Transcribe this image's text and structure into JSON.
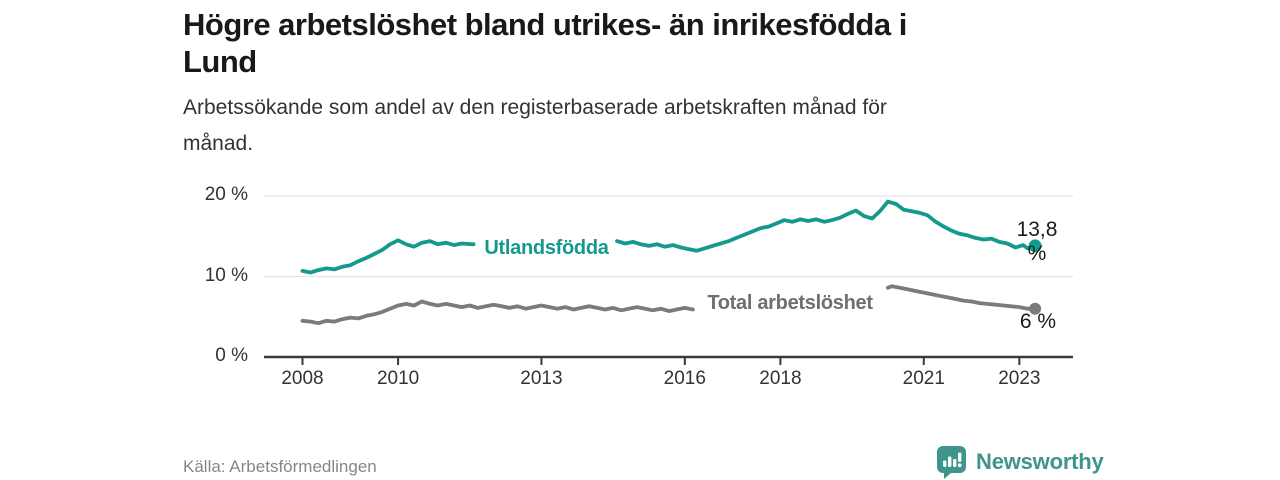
{
  "header": {
    "title_lines": [
      "Högre arbetslöshet bland utrikes- än inrikesfödda i",
      "Lund"
    ],
    "subtitle_lines": [
      "Arbetssökande som andel av den registerbaserade arbetskraften månad för",
      "månad."
    ]
  },
  "footer": {
    "source": "Källa: Arbetsförmedlingen",
    "brand": "Newsworthy",
    "brand_icon": "bar-chart-speech-bubble-icon"
  },
  "colors": {
    "foreign_line": "#149a8c",
    "total_line": "#7b7b7b",
    "grid": "#e3e3e3",
    "axis": "#3b3b3b",
    "tick_text": "#333333",
    "brand": "#3f948b",
    "value_text": "#1a1a1a"
  },
  "chart_data": {
    "type": "line",
    "title": "Högre arbetslöshet bland utrikes- än inrikesfödda i Lund",
    "subtitle": "Arbetssökande som andel av den registerbaserade arbetskraften månad för månad.",
    "unit": "%",
    "grid": "horizontal",
    "labels_inline": true,
    "xlim": [
      2007.2,
      2024.1
    ],
    "ylim": [
      0,
      21.7
    ],
    "x_ticks": [
      2008,
      2010,
      2013,
      2016,
      2018,
      2021,
      2023
    ],
    "x_tick_labels": [
      "2008",
      "2010",
      "2013",
      "2016",
      "2018",
      "2021",
      "2023"
    ],
    "y_ticks": [
      0,
      10,
      20
    ],
    "y_tick_labels": [
      "0 %",
      "10 %",
      "20 %"
    ],
    "series": [
      {
        "name": "Utlandsfödda",
        "color": "#149a8c",
        "end_label": "13,8 %",
        "end_value": 13.8,
        "label_gap": [
          2011.6,
          2014.57
        ],
        "points": [
          [
            2008.0,
            10.7
          ],
          [
            2008.17,
            10.5
          ],
          [
            2008.33,
            10.8
          ],
          [
            2008.5,
            11.0
          ],
          [
            2008.67,
            10.9
          ],
          [
            2008.83,
            11.2
          ],
          [
            2009.0,
            11.4
          ],
          [
            2009.17,
            11.9
          ],
          [
            2009.33,
            12.3
          ],
          [
            2009.5,
            12.8
          ],
          [
            2009.67,
            13.3
          ],
          [
            2009.83,
            14.0
          ],
          [
            2010.0,
            14.5
          ],
          [
            2010.17,
            14.0
          ],
          [
            2010.33,
            13.7
          ],
          [
            2010.5,
            14.2
          ],
          [
            2010.67,
            14.4
          ],
          [
            2010.83,
            14.0
          ],
          [
            2011.0,
            14.2
          ],
          [
            2011.17,
            13.9
          ],
          [
            2011.33,
            14.1
          ],
          [
            2011.58,
            14.0
          ],
          [
            2014.58,
            14.4
          ],
          [
            2014.75,
            14.1
          ],
          [
            2014.92,
            14.3
          ],
          [
            2015.08,
            14.0
          ],
          [
            2015.25,
            13.8
          ],
          [
            2015.42,
            14.0
          ],
          [
            2015.58,
            13.7
          ],
          [
            2015.75,
            13.9
          ],
          [
            2015.92,
            13.6
          ],
          [
            2016.08,
            13.4
          ],
          [
            2016.25,
            13.2
          ],
          [
            2016.42,
            13.5
          ],
          [
            2016.58,
            13.8
          ],
          [
            2016.75,
            14.1
          ],
          [
            2016.92,
            14.4
          ],
          [
            2017.08,
            14.8
          ],
          [
            2017.25,
            15.2
          ],
          [
            2017.42,
            15.6
          ],
          [
            2017.58,
            16.0
          ],
          [
            2017.75,
            16.2
          ],
          [
            2017.92,
            16.6
          ],
          [
            2018.08,
            17.0
          ],
          [
            2018.25,
            16.8
          ],
          [
            2018.42,
            17.1
          ],
          [
            2018.58,
            16.9
          ],
          [
            2018.75,
            17.1
          ],
          [
            2018.92,
            16.8
          ],
          [
            2019.08,
            17.0
          ],
          [
            2019.25,
            17.3
          ],
          [
            2019.42,
            17.8
          ],
          [
            2019.58,
            18.2
          ],
          [
            2019.75,
            17.5
          ],
          [
            2019.92,
            17.2
          ],
          [
            2020.08,
            18.1
          ],
          [
            2020.25,
            19.3
          ],
          [
            2020.42,
            19.0
          ],
          [
            2020.58,
            18.3
          ],
          [
            2020.75,
            18.1
          ],
          [
            2020.92,
            17.9
          ],
          [
            2021.08,
            17.6
          ],
          [
            2021.25,
            16.8
          ],
          [
            2021.42,
            16.2
          ],
          [
            2021.58,
            15.7
          ],
          [
            2021.75,
            15.3
          ],
          [
            2021.92,
            15.1
          ],
          [
            2022.08,
            14.8
          ],
          [
            2022.25,
            14.6
          ],
          [
            2022.42,
            14.7
          ],
          [
            2022.58,
            14.3
          ],
          [
            2022.75,
            14.1
          ],
          [
            2022.92,
            13.6
          ],
          [
            2023.08,
            13.9
          ],
          [
            2023.17,
            13.5
          ],
          [
            2023.33,
            13.8
          ]
        ]
      },
      {
        "name": "Total arbetslöshet",
        "color": "#7b7b7b",
        "end_label": "6 %",
        "end_value": 6.0,
        "label_gap": [
          2016.2,
          2020.24
        ],
        "points": [
          [
            2008.0,
            4.5
          ],
          [
            2008.17,
            4.4
          ],
          [
            2008.33,
            4.2
          ],
          [
            2008.5,
            4.5
          ],
          [
            2008.67,
            4.4
          ],
          [
            2008.83,
            4.7
          ],
          [
            2009.0,
            4.9
          ],
          [
            2009.17,
            4.8
          ],
          [
            2009.33,
            5.1
          ],
          [
            2009.5,
            5.3
          ],
          [
            2009.67,
            5.6
          ],
          [
            2009.83,
            6.0
          ],
          [
            2010.0,
            6.4
          ],
          [
            2010.17,
            6.6
          ],
          [
            2010.33,
            6.4
          ],
          [
            2010.5,
            6.9
          ],
          [
            2010.67,
            6.6
          ],
          [
            2010.83,
            6.4
          ],
          [
            2011.0,
            6.6
          ],
          [
            2011.17,
            6.4
          ],
          [
            2011.33,
            6.2
          ],
          [
            2011.5,
            6.4
          ],
          [
            2011.67,
            6.1
          ],
          [
            2011.83,
            6.3
          ],
          [
            2012.0,
            6.5
          ],
          [
            2012.17,
            6.3
          ],
          [
            2012.33,
            6.1
          ],
          [
            2012.5,
            6.3
          ],
          [
            2012.67,
            6.0
          ],
          [
            2012.83,
            6.2
          ],
          [
            2013.0,
            6.4
          ],
          [
            2013.17,
            6.2
          ],
          [
            2013.33,
            6.0
          ],
          [
            2013.5,
            6.2
          ],
          [
            2013.67,
            5.9
          ],
          [
            2013.83,
            6.1
          ],
          [
            2014.0,
            6.3
          ],
          [
            2014.17,
            6.1
          ],
          [
            2014.33,
            5.9
          ],
          [
            2014.5,
            6.1
          ],
          [
            2014.67,
            5.8
          ],
          [
            2014.83,
            6.0
          ],
          [
            2015.0,
            6.2
          ],
          [
            2015.17,
            6.0
          ],
          [
            2015.33,
            5.8
          ],
          [
            2015.5,
            6.0
          ],
          [
            2015.67,
            5.7
          ],
          [
            2015.83,
            5.9
          ],
          [
            2016.0,
            6.1
          ],
          [
            2016.17,
            5.9
          ],
          [
            2020.25,
            8.6
          ],
          [
            2020.33,
            8.8
          ],
          [
            2020.5,
            8.6
          ],
          [
            2020.67,
            8.4
          ],
          [
            2020.83,
            8.2
          ],
          [
            2021.0,
            8.0
          ],
          [
            2021.17,
            7.8
          ],
          [
            2021.33,
            7.6
          ],
          [
            2021.5,
            7.4
          ],
          [
            2021.67,
            7.2
          ],
          [
            2021.83,
            7.0
          ],
          [
            2022.0,
            6.9
          ],
          [
            2022.17,
            6.7
          ],
          [
            2022.33,
            6.6
          ],
          [
            2022.5,
            6.5
          ],
          [
            2022.67,
            6.4
          ],
          [
            2022.83,
            6.3
          ],
          [
            2023.0,
            6.2
          ],
          [
            2023.17,
            6.0
          ],
          [
            2023.33,
            6.0
          ]
        ]
      }
    ]
  }
}
